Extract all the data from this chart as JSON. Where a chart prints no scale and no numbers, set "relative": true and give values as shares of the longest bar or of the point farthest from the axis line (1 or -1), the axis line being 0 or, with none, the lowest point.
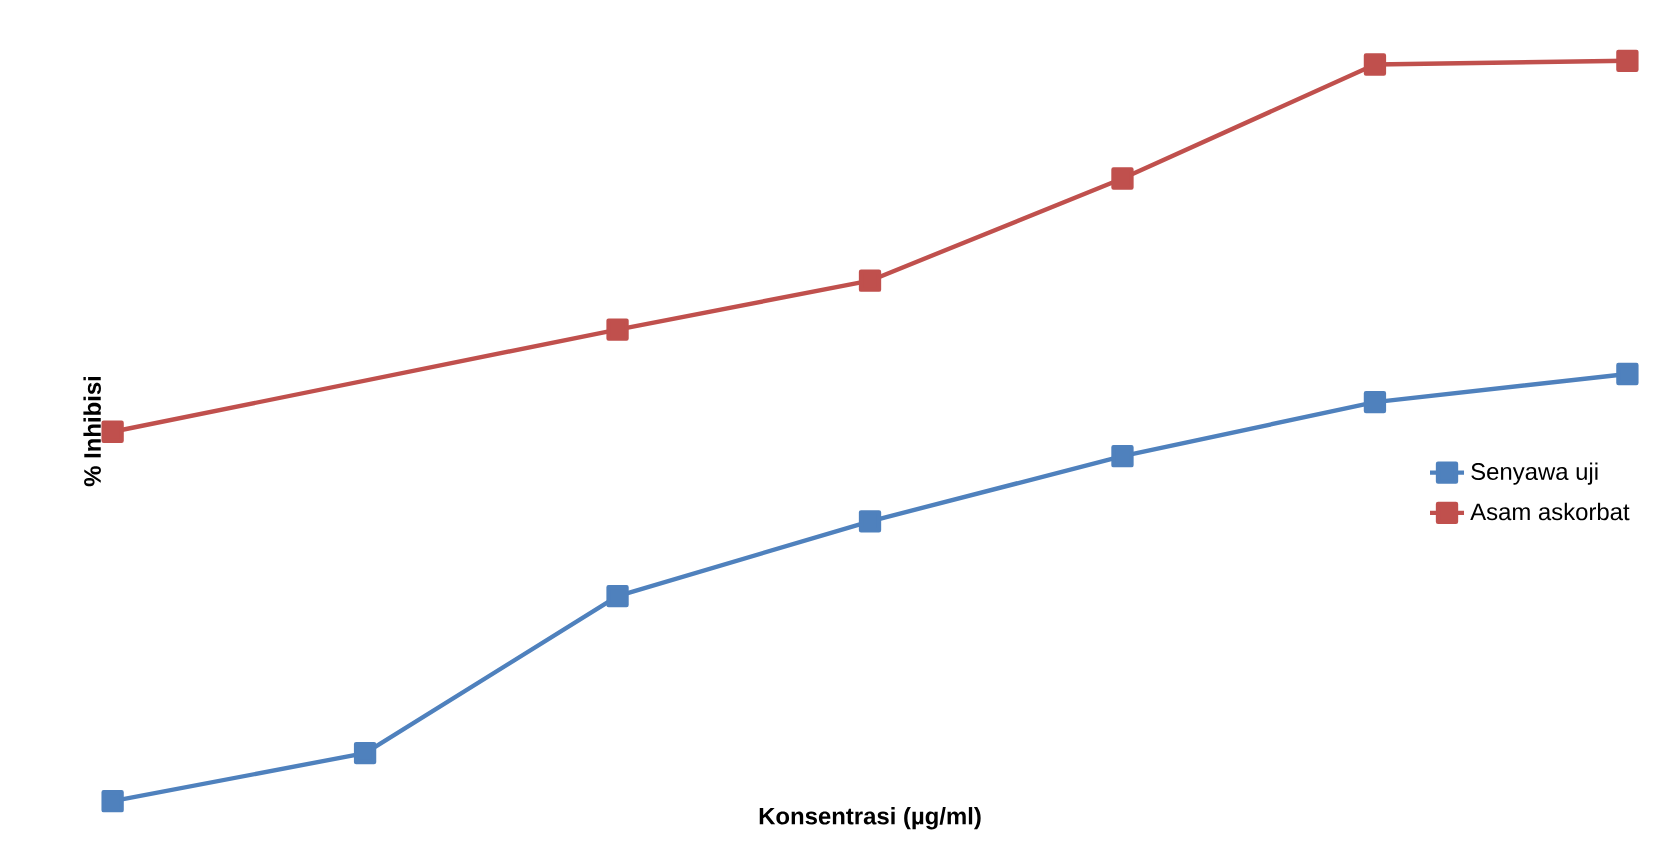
{
  "chart_data": {
    "type": "line",
    "relative": true,
    "xlabel": "Konsentrasi (µg/ml)",
    "ylabel": "% Inhibisi",
    "categories": [
      null,
      null,
      null,
      null,
      null,
      null,
      null
    ],
    "series": [
      {
        "name": "Senyawa uji",
        "color": "#4f81bd",
        "values": [
          0,
          0.065,
          0.277,
          0.378,
          0.466,
          0.539,
          0.577
        ]
      },
      {
        "name": "Asam askorbat",
        "color": "#c0504d",
        "values": [
          0.499,
          null,
          0.637,
          0.703,
          0.841,
          0.995,
          1.0
        ]
      }
    ],
    "marker": "square",
    "legend": "right",
    "tick_labels": false
  }
}
